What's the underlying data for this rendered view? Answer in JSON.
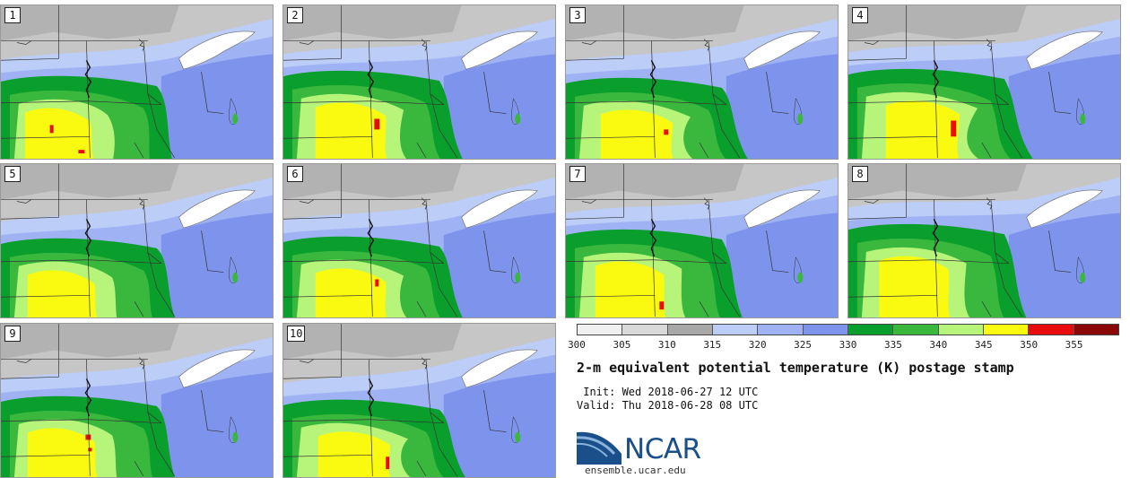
{
  "panels": [
    {
      "label": "1"
    },
    {
      "label": "2"
    },
    {
      "label": "3"
    },
    {
      "label": "4"
    },
    {
      "label": "5"
    },
    {
      "label": "6"
    },
    {
      "label": "7"
    },
    {
      "label": "8"
    },
    {
      "label": "9"
    },
    {
      "label": "10"
    }
  ],
  "colorbar": {
    "ticks": [
      "300",
      "305",
      "310",
      "315",
      "320",
      "325",
      "330",
      "335",
      "340",
      "345",
      "350",
      "355"
    ],
    "colors": [
      "#f0f0f0",
      "#d9d9d9",
      "#a8a8a8",
      "#bccdf8",
      "#9eb2f4",
      "#7e94ec",
      "#0a9e2c",
      "#3ab83e",
      "#b6f47a",
      "#fafa10",
      "#e80c0c",
      "#8a0808"
    ]
  },
  "title": "2-m equivalent potential temperature (K) postage stamp",
  "init": " Init: Wed 2018-06-27 12 UTC",
  "valid": "Valid: Thu 2018-06-28 08 UTC",
  "logo": {
    "text": "NCAR",
    "site": "ensemble.ucar.edu"
  }
}
